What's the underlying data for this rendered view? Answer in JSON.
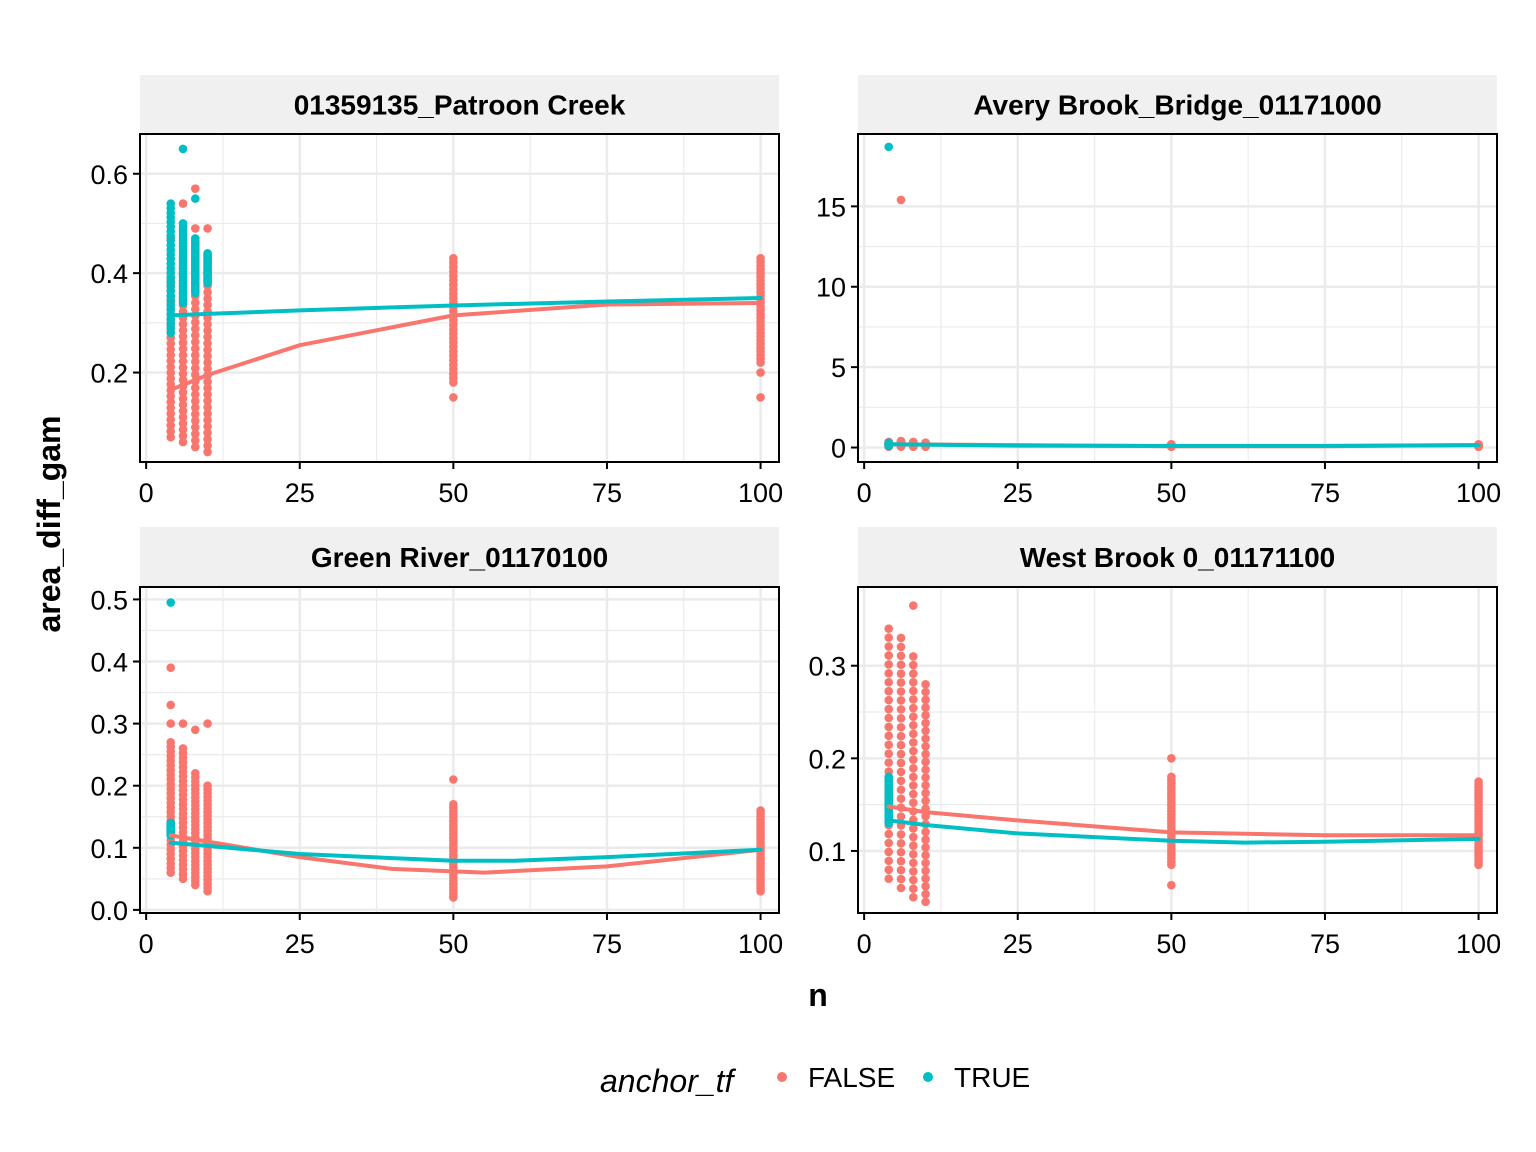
{
  "chart_data": {
    "type": "scatter",
    "xlabel": "n",
    "ylabel": "area_diff_gam",
    "legend": {
      "title": "anchor_tf",
      "placement": "bottom",
      "entries": [
        {
          "label": "FALSE",
          "color": "#F8766D"
        },
        {
          "label": "TRUE",
          "color": "#00BFC4"
        }
      ]
    },
    "colors": {
      "FALSE": "#F8766D",
      "TRUE": "#00BFC4",
      "strip_bg": "#F0F0F0",
      "grid": "#EBEBEB"
    },
    "xlim": [
      -1,
      103
    ],
    "x_ticks": [
      0,
      25,
      50,
      75,
      100
    ],
    "facets": [
      {
        "title": "01359135_Patroon Creek",
        "ylim": [
          0.02,
          0.68
        ],
        "y_ticks": [
          0.2,
          0.4,
          0.6
        ],
        "y_tick_labels": [
          "0.2",
          "0.4",
          "0.6"
        ],
        "points": {
          "FALSE": [
            {
              "x": 4,
              "min": 0.07,
              "max": 0.4,
              "extra": [
                0.47
              ]
            },
            {
              "x": 6,
              "min": 0.06,
              "max": 0.41,
              "extra": [
                0.46,
                0.54
              ]
            },
            {
              "x": 8,
              "min": 0.05,
              "max": 0.42,
              "extra": [
                0.49,
                0.57
              ]
            },
            {
              "x": 10,
              "min": 0.04,
              "max": 0.4,
              "extra": [
                0.49
              ]
            },
            {
              "x": 50,
              "min": 0.18,
              "max": 0.43,
              "extra": [
                0.15
              ]
            },
            {
              "x": 100,
              "min": 0.22,
              "max": 0.43,
              "extra": [
                0.2,
                0.15
              ]
            }
          ],
          "TRUE": [
            {
              "x": 4,
              "min": 0.28,
              "max": 0.54,
              "extra": []
            },
            {
              "x": 6,
              "min": 0.34,
              "max": 0.5,
              "extra": [
                0.65
              ]
            },
            {
              "x": 8,
              "min": 0.36,
              "max": 0.47,
              "extra": [
                0.55
              ]
            },
            {
              "x": 10,
              "min": 0.38,
              "max": 0.44,
              "extra": []
            }
          ]
        },
        "smooth": {
          "FALSE": [
            [
              4,
              0.165
            ],
            [
              10,
              0.195
            ],
            [
              25,
              0.255
            ],
            [
              50,
              0.315
            ],
            [
              75,
              0.337
            ],
            [
              100,
              0.34
            ]
          ],
          "TRUE": [
            [
              4,
              0.315
            ],
            [
              10,
              0.318
            ],
            [
              25,
              0.325
            ],
            [
              50,
              0.335
            ],
            [
              75,
              0.343
            ],
            [
              100,
              0.35
            ]
          ]
        }
      },
      {
        "title": "Avery Brook_Bridge_01171000",
        "ylim": [
          -0.9,
          19.5
        ],
        "y_ticks": [
          0,
          5,
          10,
          15
        ],
        "y_tick_labels": [
          "0",
          "5",
          "10",
          "15"
        ],
        "points": {
          "FALSE": [
            {
              "x": 4,
              "min": 0.05,
              "max": 0.35,
              "extra": []
            },
            {
              "x": 6,
              "min": 0.05,
              "max": 0.4,
              "extra": [
                15.4
              ]
            },
            {
              "x": 8,
              "min": 0.05,
              "max": 0.35,
              "extra": []
            },
            {
              "x": 10,
              "min": 0.05,
              "max": 0.3,
              "extra": []
            },
            {
              "x": 50,
              "min": 0.05,
              "max": 0.2,
              "extra": []
            },
            {
              "x": 100,
              "min": 0.05,
              "max": 0.2,
              "extra": []
            }
          ],
          "TRUE": [
            {
              "x": 4,
              "min": 0.1,
              "max": 0.3,
              "extra": [
                18.7
              ]
            }
          ]
        },
        "smooth": {
          "FALSE": [
            [
              4,
              0.2
            ],
            [
              25,
              0.15
            ],
            [
              50,
              0.08
            ],
            [
              75,
              0.08
            ],
            [
              100,
              0.15
            ]
          ],
          "TRUE": [
            [
              4,
              0.2
            ],
            [
              25,
              0.12
            ],
            [
              50,
              0.1
            ],
            [
              75,
              0.1
            ],
            [
              100,
              0.15
            ]
          ]
        }
      },
      {
        "title": "Green River_01170100",
        "ylim": [
          -0.005,
          0.52
        ],
        "y_ticks": [
          0.0,
          0.1,
          0.2,
          0.3,
          0.4,
          0.5
        ],
        "y_tick_labels": [
          "0.0",
          "0.1",
          "0.2",
          "0.3",
          "0.4",
          "0.5"
        ],
        "points": {
          "FALSE": [
            {
              "x": 4,
              "min": 0.06,
              "max": 0.27,
              "extra": [
                0.3,
                0.33,
                0.39
              ]
            },
            {
              "x": 6,
              "min": 0.05,
              "max": 0.26,
              "extra": [
                0.3
              ]
            },
            {
              "x": 8,
              "min": 0.04,
              "max": 0.22,
              "extra": [
                0.29
              ]
            },
            {
              "x": 10,
              "min": 0.03,
              "max": 0.2,
              "extra": [
                0.3
              ]
            },
            {
              "x": 50,
              "min": 0.02,
              "max": 0.17,
              "extra": [
                0.21
              ]
            },
            {
              "x": 100,
              "min": 0.03,
              "max": 0.16,
              "extra": []
            }
          ],
          "TRUE": [
            {
              "x": 4,
              "min": 0.12,
              "max": 0.14,
              "extra": [
                0.495
              ]
            }
          ]
        },
        "smooth": {
          "FALSE": [
            [
              4,
              0.12
            ],
            [
              10,
              0.11
            ],
            [
              25,
              0.085
            ],
            [
              40,
              0.066
            ],
            [
              55,
              0.06
            ],
            [
              75,
              0.07
            ],
            [
              100,
              0.097
            ]
          ],
          "TRUE": [
            [
              4,
              0.108
            ],
            [
              10,
              0.103
            ],
            [
              25,
              0.09
            ],
            [
              50,
              0.079
            ],
            [
              60,
              0.079
            ],
            [
              75,
              0.085
            ],
            [
              100,
              0.097
            ]
          ]
        }
      },
      {
        "title": "West Brook 0_01171100",
        "ylim": [
          0.033,
          0.385
        ],
        "y_ticks": [
          0.1,
          0.2,
          0.3
        ],
        "y_tick_labels": [
          "0.1",
          "0.2",
          "0.3"
        ],
        "points": {
          "FALSE": [
            {
              "x": 4,
              "min": 0.07,
              "max": 0.34,
              "extra": []
            },
            {
              "x": 6,
              "min": 0.06,
              "max": 0.33,
              "extra": []
            },
            {
              "x": 8,
              "min": 0.05,
              "max": 0.31,
              "extra": [
                0.365
              ]
            },
            {
              "x": 10,
              "min": 0.045,
              "max": 0.28,
              "extra": []
            },
            {
              "x": 50,
              "min": 0.085,
              "max": 0.18,
              "extra": [
                0.2,
                0.063
              ]
            },
            {
              "x": 100,
              "min": 0.085,
              "max": 0.175,
              "extra": []
            }
          ],
          "TRUE": [
            {
              "x": 4,
              "min": 0.13,
              "max": 0.18,
              "extra": []
            }
          ]
        },
        "smooth": {
          "FALSE": [
            [
              4,
              0.148
            ],
            [
              10,
              0.142
            ],
            [
              25,
              0.133
            ],
            [
              50,
              0.12
            ],
            [
              75,
              0.117
            ],
            [
              100,
              0.117
            ]
          ],
          "TRUE": [
            [
              4,
              0.133
            ],
            [
              10,
              0.128
            ],
            [
              25,
              0.119
            ],
            [
              50,
              0.111
            ],
            [
              62,
              0.109
            ],
            [
              75,
              0.11
            ],
            [
              100,
              0.113
            ]
          ]
        }
      }
    ]
  }
}
